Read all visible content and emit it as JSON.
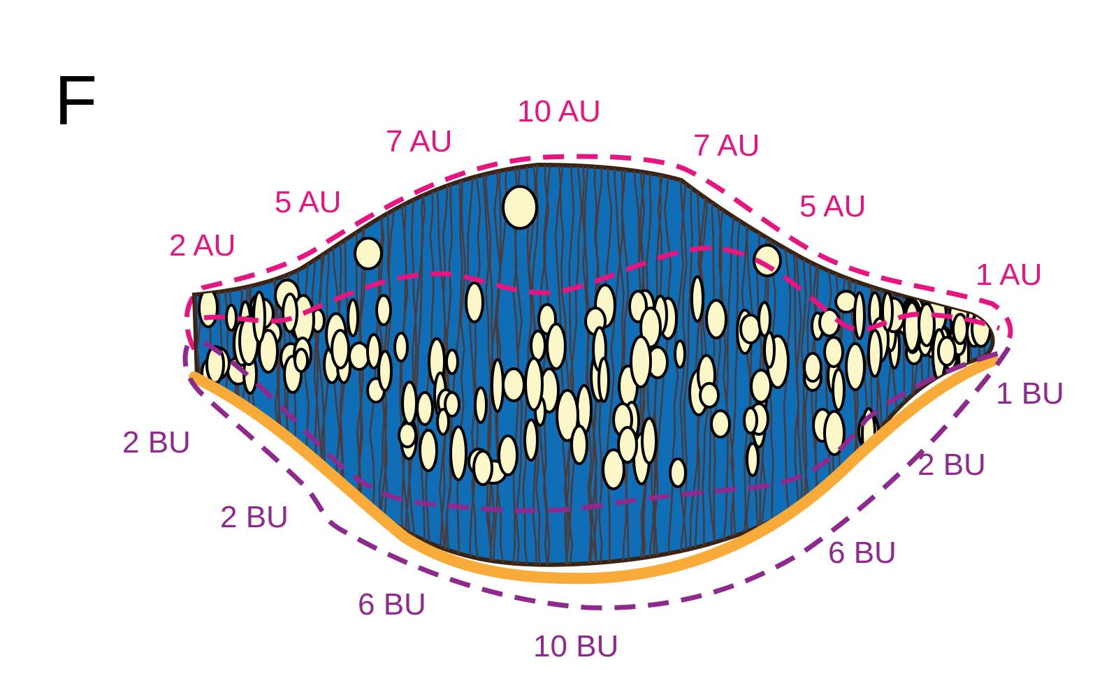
{
  "panel_label": "F",
  "colors": {
    "tissue": "#0f6eb6",
    "fiber": "#4a3a3a",
    "outline": "#3b2314",
    "cells": "#fbf7c8",
    "above_line": "#e6157f",
    "below_line": "#8e2a8e",
    "base_line": "#f9ab3a"
  },
  "above_labels": [
    "2 AU",
    "5 AU",
    "7 AU",
    "10 AU",
    "7 AU",
    "5 AU",
    "1 AU"
  ],
  "below_labels": [
    "2 BU",
    "2 BU",
    "6 BU",
    "10 BU",
    "6 BU",
    "2 BU",
    "1 BU"
  ]
}
